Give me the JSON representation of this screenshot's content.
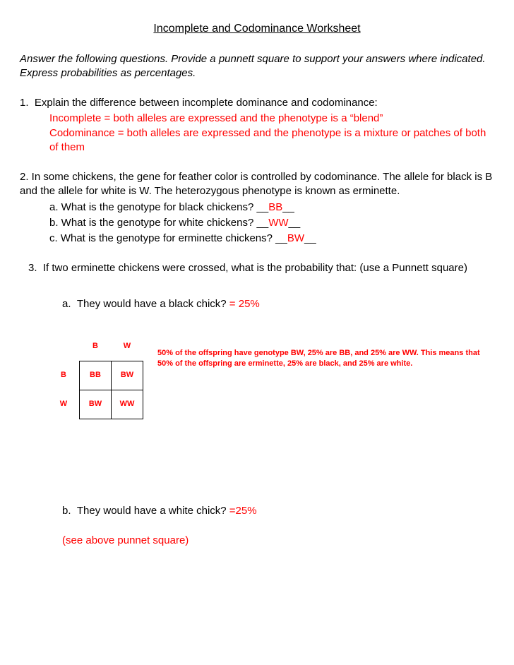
{
  "title": "Incomplete and Codominance Worksheet",
  "instructions": "Answer the following questions. Provide a punnett square to support your answers where indicated. Express probabilities as percentages.",
  "q1": {
    "stem": "1.  Explain the difference between incomplete dominance and codominance:",
    "answer": "Incomplete = both alleles are expressed and the phenotype is a “blend”\nCodominance = both alleles are expressed and the phenotype is a mixture or patches of both of them"
  },
  "q2": {
    "stem": "2. In some chickens, the gene for feather color is controlled by codominance. The allele for black is B and the allele for white is W. The heterozygous phenotype is known as erminette.",
    "a": {
      "label": "a. What is the genotype for black chickens? __",
      "answer": "BB",
      "suffix": "__"
    },
    "b": {
      "label": "b. What is the genotype for white chickens? __",
      "answer": "WW",
      "suffix": "__"
    },
    "c": {
      "label": "c. What is the genotype for erminette chickens? __",
      "answer": "BW",
      "suffix": "__"
    }
  },
  "q3": {
    "stem": "3.  If two erminette chickens were crossed, what is the probability that: (use a Punnett square)",
    "a": {
      "label": "a.  They would have a black chick? ",
      "answer": "= 25%"
    },
    "punnett": {
      "col_headers": [
        "B",
        "W"
      ],
      "row_headers": [
        "B",
        "W"
      ],
      "cells": [
        [
          "BB",
          "BW"
        ],
        [
          "BW",
          "WW"
        ]
      ],
      "note": "50% of the offspring have genotype BW, 25% are BB, and 25% are WW. This means that 50% of the offspring are erminette, 25% are black, and 25% are white."
    },
    "b": {
      "label": "b.  They would have a white chick? ",
      "answer": "=25%"
    },
    "b_note": "(see above punnet square)"
  },
  "colors": {
    "answer_red": "#ff0000",
    "text_black": "#000000",
    "background": "#ffffff",
    "border": "#000000"
  }
}
